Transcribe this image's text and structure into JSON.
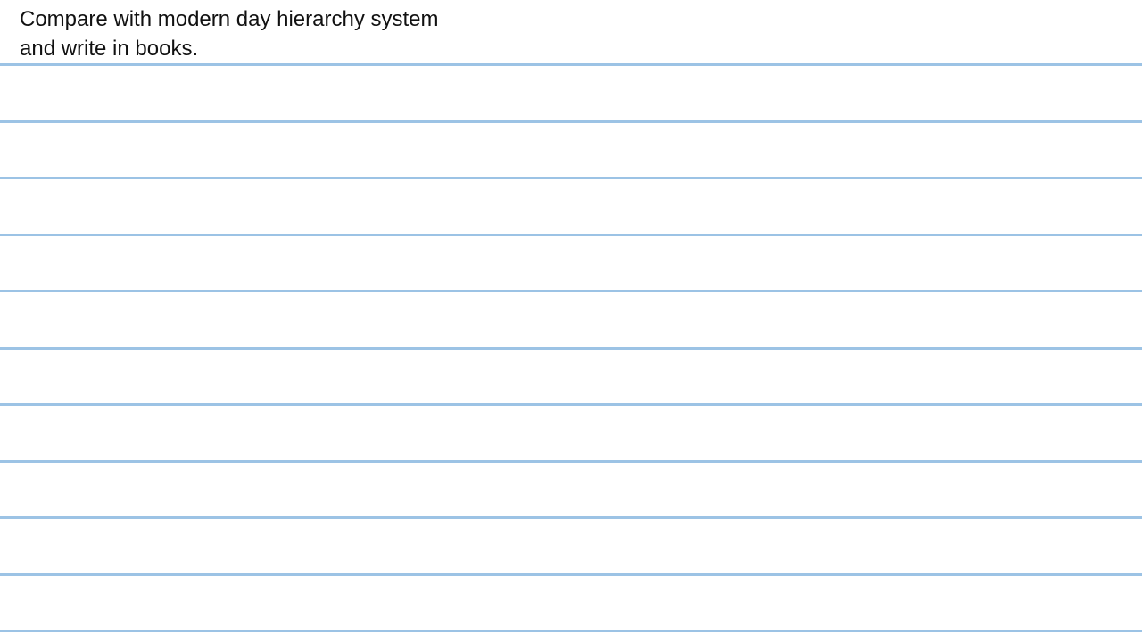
{
  "instruction": {
    "line1": "Compare with modern day hierarchy system",
    "line2": "and write in books."
  },
  "ruled_lines": {
    "count": 11,
    "color": "#9cc3e5"
  }
}
